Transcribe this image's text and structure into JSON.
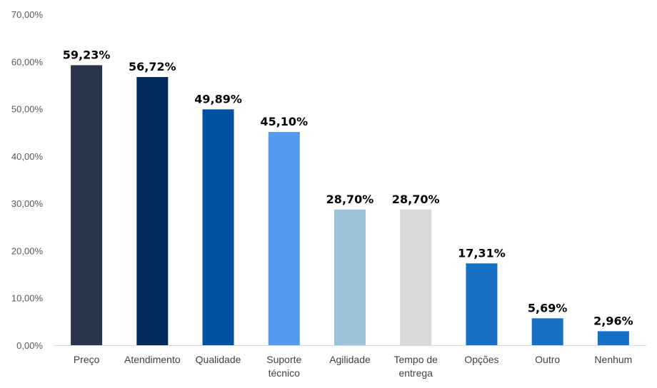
{
  "chart_data": {
    "type": "bar",
    "title": "",
    "xlabel": "",
    "ylabel": "",
    "ylim": [
      0,
      70
    ],
    "yticks": [
      "0,00%",
      "10,00%",
      "20,00%",
      "30,00%",
      "40,00%",
      "50,00%",
      "60,00%",
      "70,00%"
    ],
    "grid": false,
    "legend": "none",
    "categories": [
      [
        "Preço"
      ],
      [
        "Atendimento"
      ],
      [
        "Qualidade"
      ],
      [
        "Suporte",
        "técnico"
      ],
      [
        "Agilidade"
      ],
      [
        "Tempo de",
        "entrega"
      ],
      [
        "Opções"
      ],
      [
        "Outro"
      ],
      [
        "Nenhum"
      ]
    ],
    "values": [
      59.23,
      56.72,
      49.89,
      45.1,
      28.7,
      28.7,
      17.31,
      5.69,
      2.96
    ],
    "data_labels": [
      "59,23%",
      "56,72%",
      "49,89%",
      "45,10%",
      "28,70%",
      "28,70%",
      "17,31%",
      "5,69%",
      "2,96%"
    ],
    "colors": [
      "#2a354d",
      "#002a5c",
      "#0052a0",
      "#549bf0",
      "#9dc3da",
      "#d9d9d9",
      "#1670c6",
      "#1670c6",
      "#1670c6"
    ],
    "axis_color": "#d9d9d9"
  }
}
